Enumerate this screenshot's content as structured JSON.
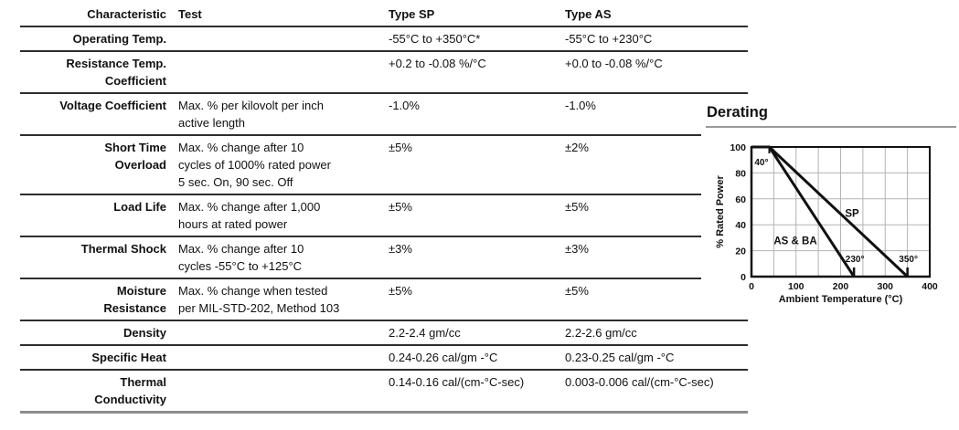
{
  "table": {
    "headers": {
      "characteristic": "Characteristic",
      "test": "Test",
      "type_sp": "Type SP",
      "type_as": "Type AS"
    },
    "rows": [
      {
        "characteristic": "Operating Temp.",
        "test": "",
        "type_sp": "-55°C to +350°C*",
        "type_as": "-55°C to +230°C"
      },
      {
        "characteristic": "Resistance Temp.\nCoefficient",
        "test": "",
        "type_sp": "+0.2 to -0.08 %/°C",
        "type_as": "+0.0 to -0.08 %/°C"
      },
      {
        "characteristic": "Voltage Coefficient",
        "test": "Max. % per kilovolt per inch\nactive length",
        "type_sp": "-1.0%",
        "type_as": "-1.0%"
      },
      {
        "characteristic": "Short Time\nOverload",
        "test": "Max. % change after 10\ncycles of 1000% rated power\n5 sec. On, 90 sec. Off",
        "type_sp": "±5%",
        "type_as": "±2%"
      },
      {
        "characteristic": "Load Life",
        "test": "Max. % change after 1,000\nhours at rated power",
        "type_sp": "±5%",
        "type_as": "±5%"
      },
      {
        "characteristic": "Thermal Shock",
        "test": "Max. % change after 10\ncycles -55°C to +125°C",
        "type_sp": "±3%",
        "type_as": "±3%"
      },
      {
        "characteristic": "Moisture\nResistance",
        "test": "Max. % change when tested\nper MIL-STD-202, Method 103",
        "type_sp": "±5%",
        "type_as": "±5%"
      },
      {
        "characteristic": "Density",
        "test": "",
        "type_sp": "2.2-2.4 gm/cc",
        "type_as": "2.2-2.6 gm/cc"
      },
      {
        "characteristic": "Specific Heat",
        "test": "",
        "type_sp": "0.24-0.26 cal/gm -°C",
        "type_as": "0.23-0.25 cal/gm -°C"
      },
      {
        "characteristic": "Thermal\nConductivity",
        "test": "",
        "type_sp": "0.14-0.16 cal/(cm-°C-sec)",
        "type_as": "0.003-0.006 cal/(cm-°C-sec)"
      }
    ]
  },
  "chart": {
    "title": "Derating"
  },
  "chart_data": {
    "type": "line",
    "title": "Derating",
    "xlabel": "Ambient Temperature (°C)",
    "ylabel": "% Rated Power",
    "xlim": [
      0,
      400
    ],
    "ylim": [
      0,
      100
    ],
    "x_ticks": [
      0,
      100,
      200,
      300,
      400
    ],
    "y_ticks": [
      0,
      20,
      40,
      60,
      80,
      100
    ],
    "grid_x_step": 50,
    "grid_y_step": 20,
    "grid_on": true,
    "legend_position": "inline-labels",
    "series": [
      {
        "name": "SP",
        "points": [
          [
            0,
            100
          ],
          [
            40,
            100
          ],
          [
            350,
            0
          ]
        ],
        "label_xy": [
          210,
          46
        ]
      },
      {
        "name": "AS & BA",
        "points": [
          [
            0,
            100
          ],
          [
            40,
            100
          ],
          [
            230,
            0
          ]
        ],
        "label_xy": [
          50,
          25
        ]
      }
    ],
    "annotations": [
      {
        "label": "40°",
        "x": 40,
        "edge": "top"
      },
      {
        "label": "230°",
        "x": 230,
        "edge": "bottom"
      },
      {
        "label": "350°",
        "x": 350,
        "edge": "bottom"
      }
    ],
    "colors": {
      "line": "#111111",
      "grid": "#b3b3b3",
      "frame": "#111111"
    }
  }
}
